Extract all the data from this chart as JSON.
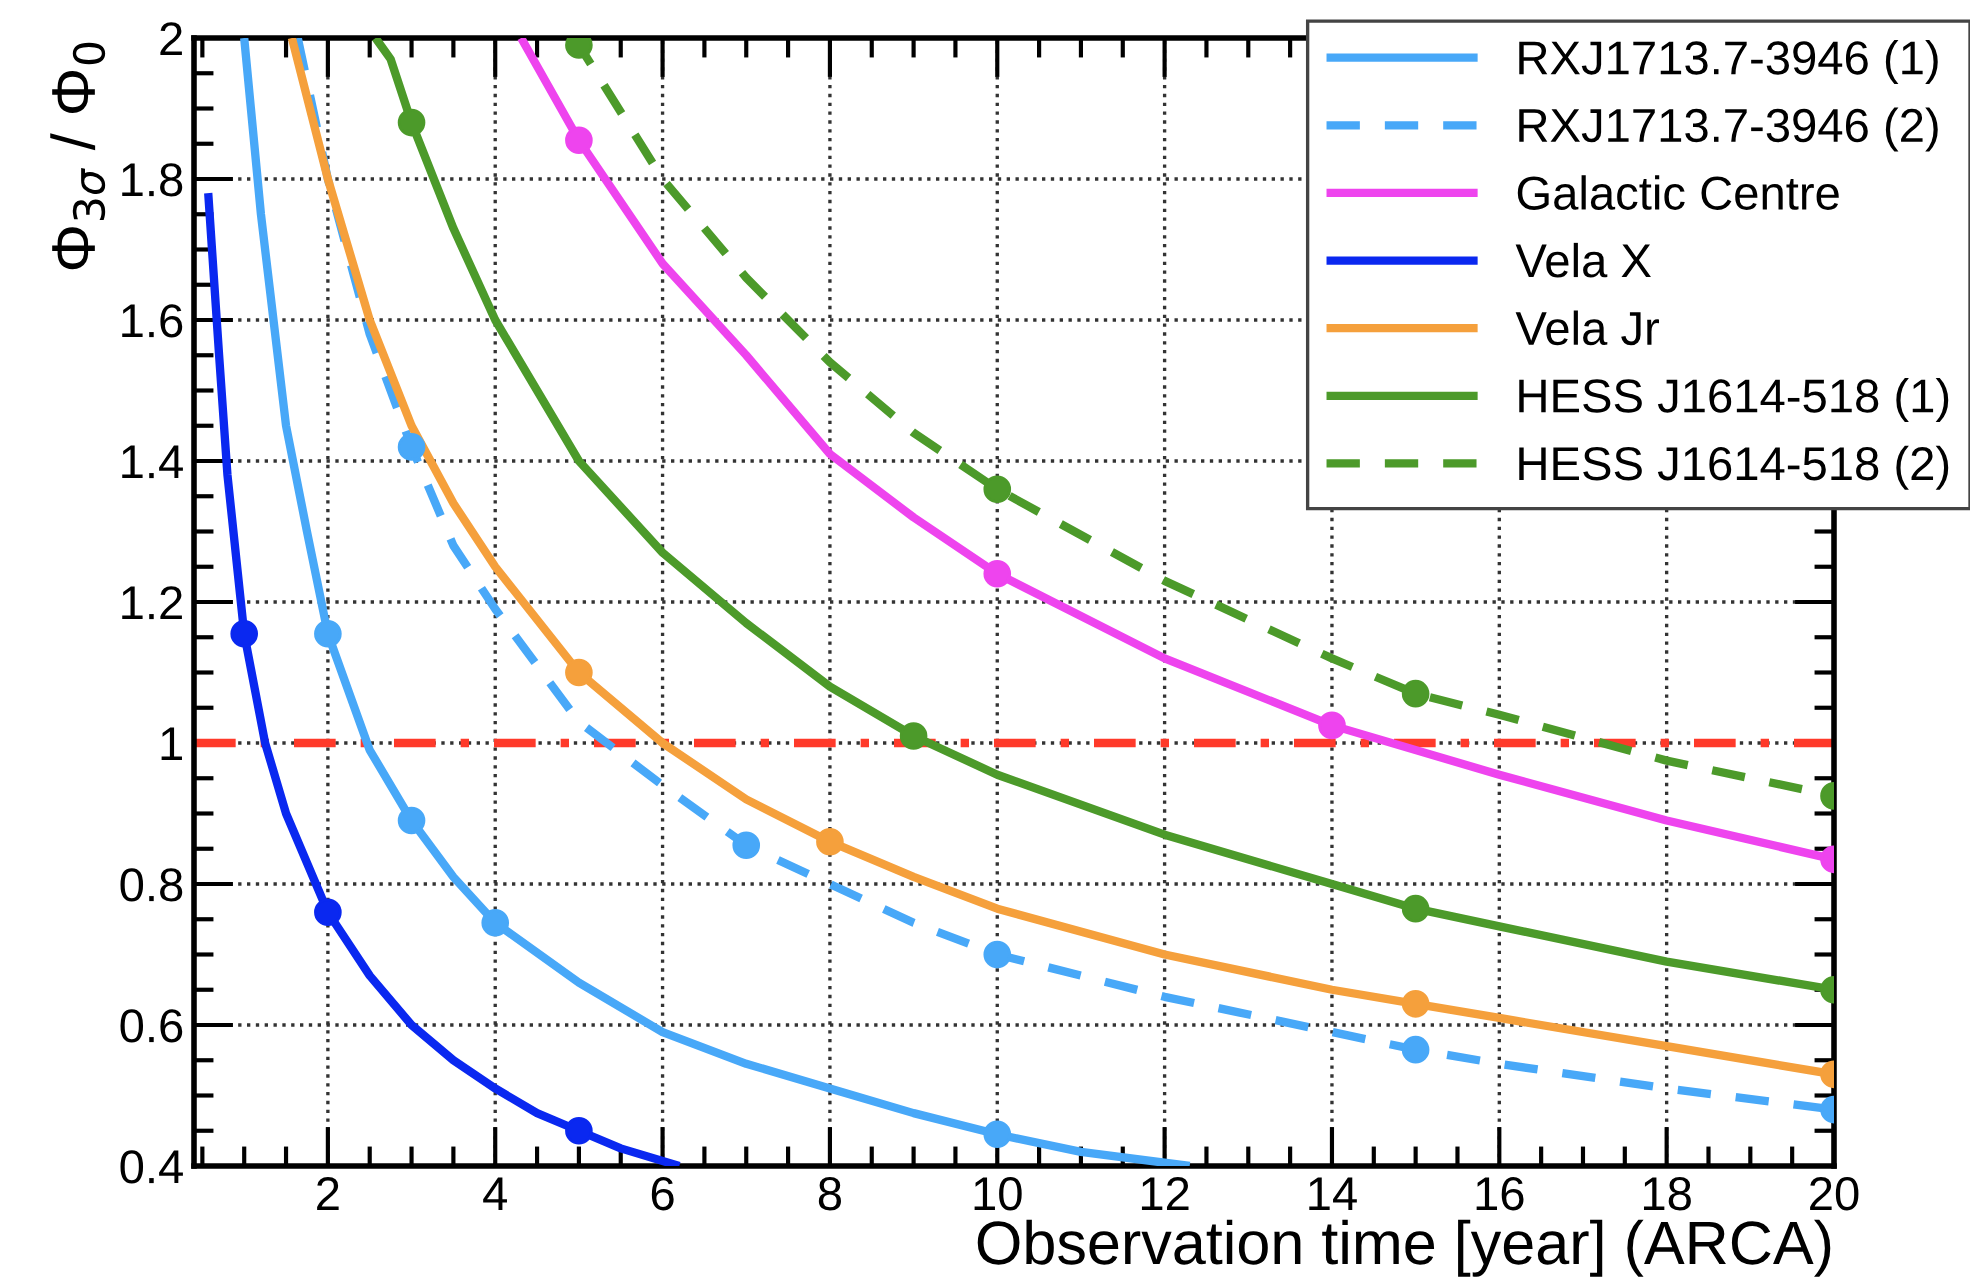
{
  "chart_data": {
    "type": "line",
    "xlabel": "Observation time [year] (ARCA)",
    "ylabel": "Φ$_{3σ}$ / Φ$_{0}$",
    "xlim": [
      0.4,
      20
    ],
    "xticks": [
      2,
      4,
      6,
      8,
      10,
      12,
      14,
      16,
      18,
      20
    ],
    "ylim": [
      0.4,
      2
    ],
    "yticks": [
      0.4,
      0.6,
      0.8,
      1,
      1.2,
      1.4,
      1.6,
      1.8,
      2
    ],
    "grid": true,
    "legend": "top right",
    "ref_lines": [
      {
        "axis": "y",
        "value": 1,
        "color": "#ff3a2a",
        "line_style": "dashed"
      }
    ],
    "series": [
      {
        "name": "RXJ1713.7-3946 (1)",
        "color": "#48a8f8",
        "line_style": "solid",
        "x": [
          1.0,
          1.2,
          1.5,
          1.75,
          2,
          2.5,
          3,
          3.5,
          4,
          5,
          6,
          7,
          8,
          9,
          10,
          11,
          12.3
        ],
        "values": [
          2.0,
          1.75,
          1.45,
          1.3,
          1.155,
          0.99,
          0.89,
          0.81,
          0.745,
          0.66,
          0.59,
          0.545,
          0.51,
          0.475,
          0.445,
          0.42,
          0.4
        ]
      },
      {
        "name": "RXJ1713.7-3946 (2)",
        "color": "#48a8f8",
        "line_style": "dashed",
        "x": [
          1.64,
          2,
          2.5,
          3,
          3.5,
          4,
          5,
          6,
          7,
          8,
          9,
          10,
          12,
          14,
          15,
          16,
          18,
          20
        ],
        "values": [
          2.0,
          1.8,
          1.58,
          1.42,
          1.28,
          1.19,
          1.03,
          0.94,
          0.855,
          0.8,
          0.745,
          0.7,
          0.64,
          0.59,
          0.565,
          0.545,
          0.51,
          0.48
        ]
      },
      {
        "name": "Galactic Centre",
        "color": "#ee44ee",
        "line_style": "solid",
        "x": [
          4.31,
          5,
          6,
          7,
          8,
          9,
          10,
          12,
          14,
          16,
          18,
          20
        ],
        "values": [
          2.0,
          1.855,
          1.68,
          1.55,
          1.41,
          1.32,
          1.24,
          1.12,
          1.025,
          0.955,
          0.89,
          0.835
        ]
      },
      {
        "name": "Vela X",
        "color": "#0a28f0",
        "line_style": "solid",
        "x": [
          0.57,
          0.7,
          0.8,
          1,
          1.25,
          1.5,
          2,
          2.5,
          3,
          3.5,
          4,
          4.5,
          5,
          5.5,
          6.2
        ],
        "values": [
          1.78,
          1.55,
          1.38,
          1.155,
          1.0,
          0.9,
          0.76,
          0.67,
          0.6,
          0.55,
          0.51,
          0.475,
          0.45,
          0.425,
          0.4
        ]
      },
      {
        "name": "Vela Jr",
        "color": "#f5a03c",
        "line_style": "solid",
        "x": [
          1.57,
          2,
          2.5,
          3,
          3.5,
          4,
          5,
          6,
          7,
          8,
          9,
          10,
          12,
          14,
          15,
          16,
          18,
          20
        ],
        "values": [
          2.0,
          1.8,
          1.6,
          1.45,
          1.34,
          1.25,
          1.1,
          1.0,
          0.92,
          0.86,
          0.81,
          0.765,
          0.7,
          0.65,
          0.63,
          0.61,
          0.57,
          0.53
        ]
      },
      {
        "name": "HESS J1614-518 (1)",
        "color": "#4c9a2a",
        "line_style": "solid",
        "x": [
          2.57,
          2.75,
          3,
          3.5,
          4,
          5,
          6,
          7,
          8,
          9,
          10,
          12,
          14,
          15,
          16,
          18,
          20
        ],
        "values": [
          2.0,
          1.97,
          1.88,
          1.73,
          1.6,
          1.4,
          1.27,
          1.17,
          1.08,
          1.01,
          0.955,
          0.87,
          0.8,
          0.765,
          0.74,
          0.69,
          0.65
        ]
      },
      {
        "name": "HESS J1614-518 (2)",
        "color": "#4c9a2a",
        "line_style": "dashed",
        "x": [
          4.9,
          5,
          6,
          7,
          8,
          9,
          10,
          12,
          14,
          15,
          16,
          18,
          20
        ],
        "values": [
          2.0,
          1.99,
          1.8,
          1.66,
          1.54,
          1.44,
          1.36,
          1.23,
          1.12,
          1.07,
          1.04,
          0.975,
          0.925
        ]
      },
      {
        "type": "scatter",
        "marker": "circle",
        "color": "#48a8f8",
        "x": [
          2,
          3,
          4,
          10
        ],
        "values": [
          1.155,
          0.89,
          0.745,
          0.445
        ]
      },
      {
        "type": "scatter",
        "marker": "circle",
        "color": "#48a8f8",
        "x": [
          3,
          7,
          10,
          15,
          20
        ],
        "values": [
          1.42,
          0.855,
          0.7,
          0.565,
          0.48
        ]
      },
      {
        "type": "scatter",
        "marker": "circle",
        "color": "#ee44ee",
        "x": [
          5,
          10,
          14,
          20
        ],
        "values": [
          1.855,
          1.24,
          1.025,
          0.835
        ]
      },
      {
        "type": "scatter",
        "marker": "circle",
        "color": "#0a28f0",
        "x": [
          1,
          2,
          5
        ],
        "values": [
          1.155,
          0.76,
          0.45
        ]
      },
      {
        "type": "scatter",
        "marker": "circle",
        "color": "#f5a03c",
        "x": [
          5,
          8,
          15,
          20
        ],
        "values": [
          1.1,
          0.86,
          0.63,
          0.53
        ]
      },
      {
        "type": "scatter",
        "marker": "circle",
        "color": "#4c9a2a",
        "x": [
          3,
          9,
          15,
          20
        ],
        "values": [
          1.88,
          1.01,
          0.765,
          0.65
        ]
      },
      {
        "type": "scatter",
        "marker": "circle",
        "color": "#4c9a2a",
        "x": [
          5,
          10,
          15,
          20
        ],
        "values": [
          1.99,
          1.36,
          1.07,
          0.925
        ]
      }
    ]
  }
}
